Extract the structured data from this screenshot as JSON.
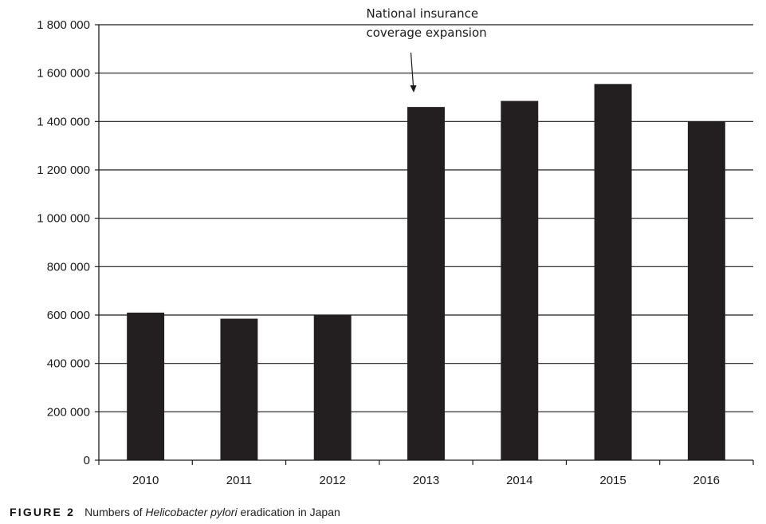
{
  "chart_data": {
    "type": "bar",
    "categories": [
      "2010",
      "2011",
      "2012",
      "2013",
      "2014",
      "2015",
      "2016"
    ],
    "values": [
      610000,
      585000,
      600000,
      1460000,
      1485000,
      1555000,
      1400000
    ],
    "ylim": [
      0,
      1800000
    ],
    "yticks": [
      0,
      200000,
      400000,
      600000,
      800000,
      1000000,
      1200000,
      1400000,
      1600000,
      1800000
    ],
    "ytick_labels": [
      "0",
      "200 000",
      "400 000",
      "600 000",
      "800 000",
      "1 000 000",
      "1 200 000",
      "1 400 000",
      "1 600 000",
      "1 800 000"
    ],
    "xlabel": "",
    "ylabel": "",
    "grid": "horizontal",
    "bar_color": "#231f20",
    "annotation": {
      "lines": [
        "National insurance",
        "coverage expansion"
      ],
      "target_category": "2013"
    }
  },
  "caption": {
    "label": "FIGURE 2",
    "text_before": "Numbers of ",
    "text_italic": "Helicobacter pylori",
    "text_after": " eradication in Japan"
  }
}
